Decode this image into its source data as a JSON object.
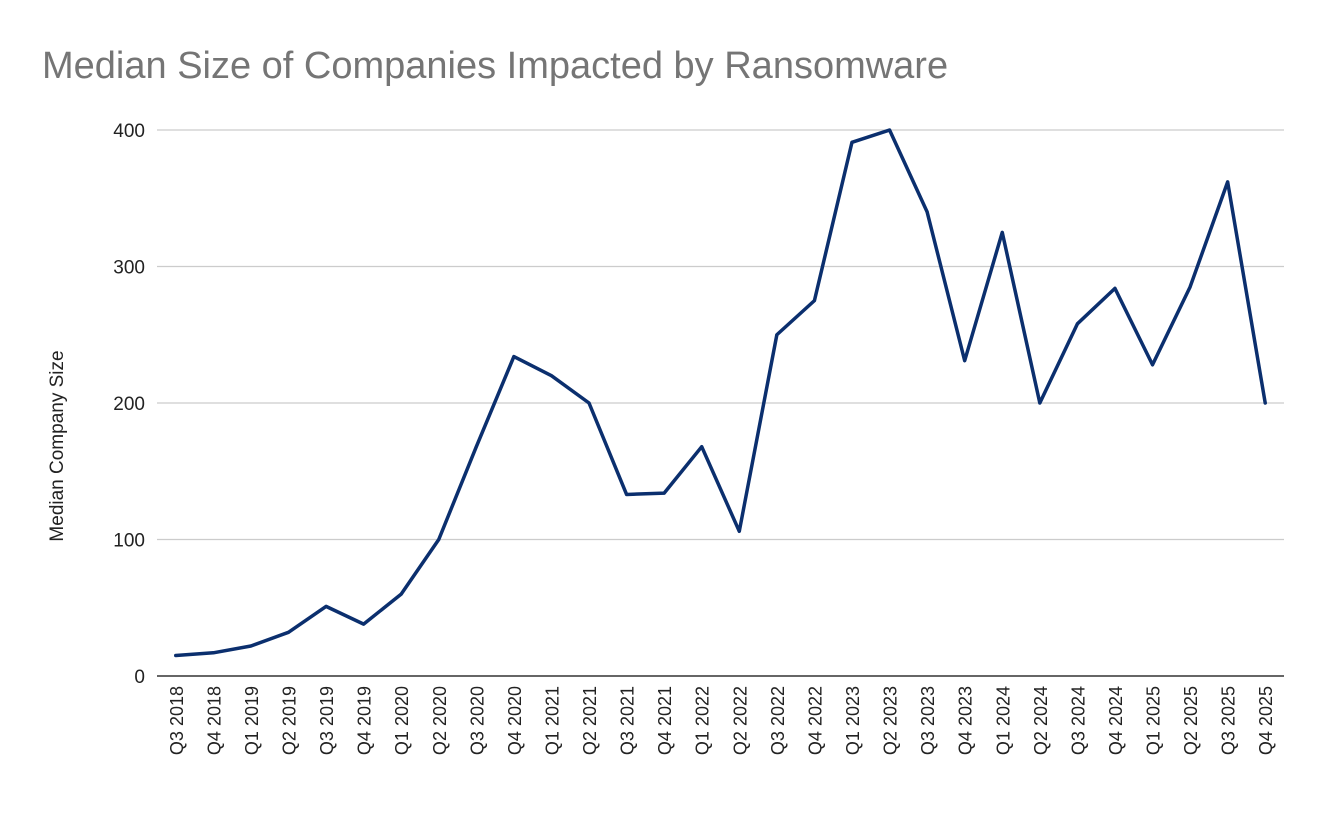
{
  "chart_data": {
    "type": "line",
    "title": "Median Size of Companies Impacted by Ransomware",
    "xlabel": "",
    "ylabel": "Median Company Size",
    "ylim": [
      0,
      400
    ],
    "yticks": [
      0,
      100,
      200,
      300,
      400
    ],
    "grid": true,
    "legend": "none",
    "categories": [
      "Q3 2018",
      "Q4 2018",
      "Q1 2019",
      "Q2 2019",
      "Q3 2019",
      "Q4 2019",
      "Q1 2020",
      "Q2 2020",
      "Q3 2020",
      "Q4 2020",
      "Q1 2021",
      "Q2 2021",
      "Q3 2021",
      "Q4 2021",
      "Q1 2022",
      "Q2 2022",
      "Q3 2022",
      "Q4 2022",
      "Q1 2023",
      "Q2 2023",
      "Q3 2023",
      "Q4 2023",
      "Q1 2024",
      "Q2 2024",
      "Q3 2024",
      "Q4 2024",
      "Q1 2025",
      "Q2 2025",
      "Q3 2025",
      "Q4 2025"
    ],
    "series": [
      {
        "values": [
          15,
          17,
          22,
          32,
          51,
          38,
          60,
          100,
          168,
          234,
          220,
          200,
          133,
          134,
          168,
          106,
          250,
          275,
          391,
          400,
          340,
          231,
          325,
          200,
          258,
          284,
          228,
          285,
          362,
          200
        ]
      }
    ],
    "colors": {
      "line": "#0b2f6e",
      "grid": "#cccccc",
      "axis": "#333333",
      "title": "#757575",
      "text": "#222222"
    }
  }
}
